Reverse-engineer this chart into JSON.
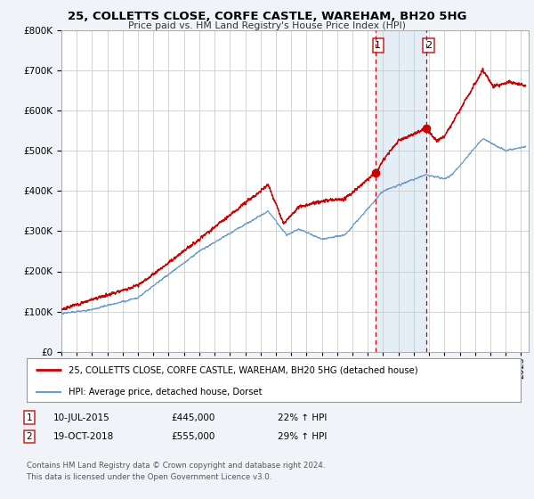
{
  "title": "25, COLLETTS CLOSE, CORFE CASTLE, WAREHAM, BH20 5HG",
  "subtitle": "Price paid vs. HM Land Registry's House Price Index (HPI)",
  "legend_line1": "25, COLLETTS CLOSE, CORFE CASTLE, WAREHAM, BH20 5HG (detached house)",
  "legend_line2": "HPI: Average price, detached house, Dorset",
  "event1_date": "10-JUL-2015",
  "event1_price": 445000,
  "event1_hpi": "22% ↑ HPI",
  "event2_date": "19-OCT-2018",
  "event2_price": 555000,
  "event2_hpi": "29% ↑ HPI",
  "event1_x": 2015.52,
  "event2_x": 2018.8,
  "footer": "Contains HM Land Registry data © Crown copyright and database right 2024.\nThis data is licensed under the Open Government Licence v3.0.",
  "red_line_color": "#cc0000",
  "blue_line_color": "#6699cc",
  "background_color": "#f0f4f8",
  "plot_bg_color": "#ffffff",
  "grid_color": "#cccccc",
  "shade_color": "#dce9f5",
  "ylim": [
    0,
    800000
  ],
  "xlim_start": 1995.0,
  "xlim_end": 2025.5
}
